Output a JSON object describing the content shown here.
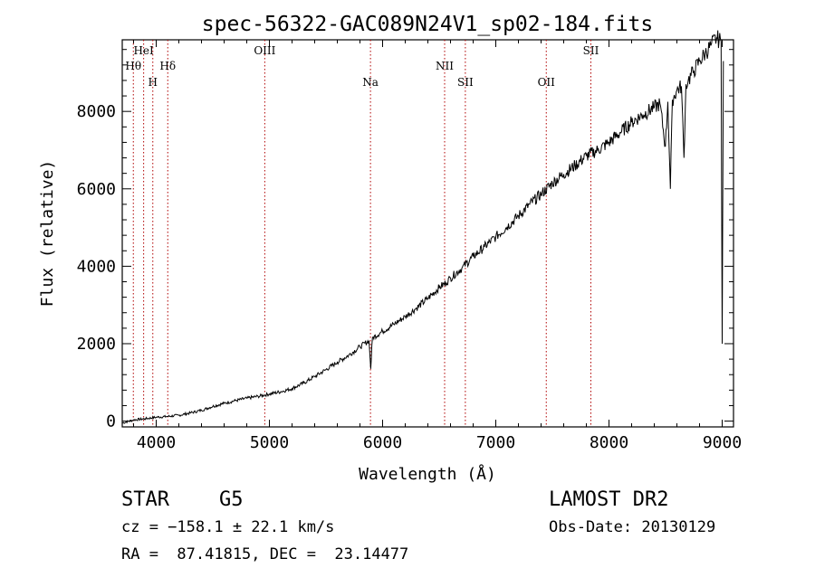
{
  "chart_data": {
    "type": "line",
    "title": "spec-56322-GAC089N24V1_sp02-184.fits",
    "xlabel": "Wavelength (Å)",
    "ylabel": "Flux (relative)",
    "xlim": [
      3700,
      9100
    ],
    "ylim": [
      -150,
      9850
    ],
    "xticks": [
      4000,
      5000,
      6000,
      7000,
      8000,
      9000
    ],
    "yticks": [
      0,
      2000,
      4000,
      6000,
      8000
    ],
    "grid": false,
    "line_color": "#000000",
    "marker_color": "#b00000",
    "series": [
      {
        "x": [
          3700,
          3800,
          3900,
          4000,
          4100,
          4200,
          4300,
          4400,
          4500,
          4600,
          4700,
          4800,
          4900,
          5000,
          5100,
          5200,
          5300,
          5400,
          5500,
          5600,
          5700,
          5800,
          5880,
          5895,
          5910,
          6000,
          6100,
          6200,
          6300,
          6400,
          6500,
          6563,
          6600,
          6700,
          6800,
          6900,
          7000,
          7100,
          7200,
          7300,
          7400,
          7500,
          7600,
          7700,
          7800,
          7900,
          8000,
          8100,
          8200,
          8300,
          8400,
          8450,
          8498,
          8520,
          8542,
          8560,
          8600,
          8640,
          8662,
          8680,
          8700,
          8750,
          8800,
          8850,
          8900,
          8950,
          8990,
          9000,
          9010
        ],
        "y": [
          -50,
          30,
          60,
          100,
          120,
          150,
          210,
          280,
          380,
          460,
          530,
          590,
          640,
          700,
          760,
          840,
          980,
          1150,
          1330,
          1520,
          1700,
          1920,
          2080,
          1350,
          2150,
          2320,
          2500,
          2700,
          2920,
          3170,
          3450,
          3580,
          3700,
          3950,
          4250,
          4500,
          4760,
          5020,
          5300,
          5600,
          5860,
          6150,
          6380,
          6600,
          6850,
          7000,
          7200,
          7460,
          7720,
          7920,
          8100,
          8200,
          7100,
          8250,
          6000,
          8300,
          8550,
          8650,
          6800,
          8700,
          8800,
          9050,
          9300,
          9500,
          9700,
          9900,
          9800,
          2000,
          9300
        ]
      }
    ],
    "line_markers": [
      {
        "label": "Hθ",
        "x": 3798,
        "row": 1
      },
      {
        "label": "HeI",
        "x": 3889,
        "row": 0
      },
      {
        "label": "H",
        "x": 3970,
        "row": 2
      },
      {
        "label": "Hδ",
        "x": 4102,
        "row": 1
      },
      {
        "label": "OIII",
        "x": 4959,
        "row": 0
      },
      {
        "label": "Na",
        "x": 5893,
        "row": 2
      },
      {
        "label": "NII",
        "x": 6548,
        "row": 1
      },
      {
        "label": "SII",
        "x": 6731,
        "row": 2
      },
      {
        "label": "OII",
        "x": 7446,
        "row": 2
      },
      {
        "label": "SII",
        "x": 7840,
        "row": 0
      }
    ]
  },
  "info": {
    "object_class": "STAR",
    "subclass": "G5",
    "survey": "LAMOST DR2",
    "cz": "cz = −158.1 ± 22.1 km/s",
    "obs_date": "Obs-Date: 20130129",
    "coords": "RA =  87.41815, DEC =  23.14477"
  }
}
